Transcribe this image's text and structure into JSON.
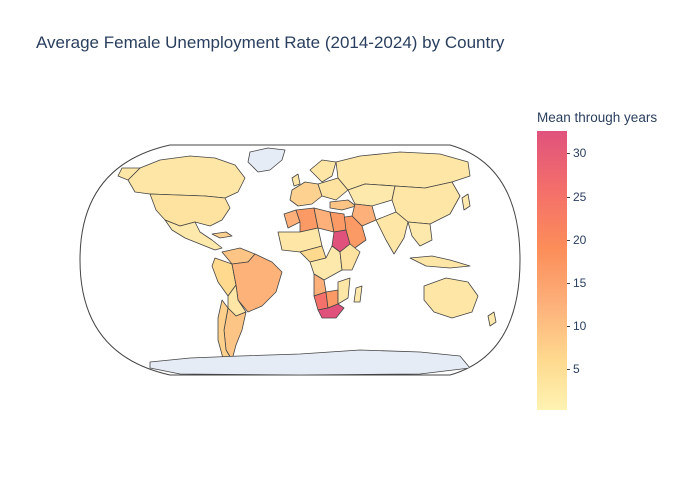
{
  "title": "Average Female Unemployment Rate (2014-2024) by Country",
  "colorbar": {
    "title": "Mean through years",
    "ticks": [
      "5",
      "10",
      "15",
      "20",
      "25",
      "30"
    ],
    "tick_values": [
      5,
      10,
      15,
      20,
      25,
      30
    ],
    "range": [
      0.3,
      32.6
    ],
    "colorscale": [
      "#fff3b2",
      "#fed98e",
      "#fdb07a",
      "#fc8d59",
      "#f4706a",
      "#e0527c"
    ]
  },
  "map": {
    "projection": "natural earth",
    "land_no_data_color": "#e5ecf6",
    "border_color": "#444444"
  }
}
